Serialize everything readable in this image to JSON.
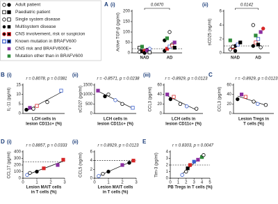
{
  "legend": [
    "Adult patient",
    "Paediatric patient",
    "Single system disease",
    "Multisystem disease",
    "CNS involvement, risk or suspicion",
    "Known mutation in BRAFV600",
    "CNS risk and BRAFV600E+",
    "Mutation other than in BRAFV600"
  ],
  "chart_data": [
    {
      "type": "strip",
      "panel": "A",
      "label": "(i)",
      "y_label": "Active TGF-β (pg/ml)",
      "p_value": "0.0470",
      "categories": [
        "NAD",
        "AD"
      ],
      "ylim": [
        0,
        200
      ],
      "yticks": [
        0,
        50,
        100,
        150,
        200
      ],
      "reference_line": 20,
      "series": [
        {
          "values": [
            5,
            8,
            10,
            15,
            20,
            25,
            30,
            0,
            12,
            3
          ],
          "colors": [
            "#000",
            "#000",
            "#d62728",
            "#000",
            "#3a5fcd",
            "#000",
            "#2e8b3a",
            "#000",
            "#8b2fa0",
            "#000"
          ],
          "shapes": [
            "circle",
            "square",
            "square",
            "circle",
            "circle",
            "square",
            "square",
            "circle",
            "square",
            "square"
          ],
          "filled": [
            false,
            true,
            true,
            true,
            false,
            false,
            true,
            true,
            true,
            false
          ]
        },
        {
          "values": [
            10,
            20,
            30,
            40,
            50,
            60,
            70,
            100,
            35,
            25
          ],
          "colors": [
            "#000",
            "#d62728",
            "#3a5fcd",
            "#000",
            "#8b2fa0",
            "#000",
            "#2e8b3a",
            "#000",
            "#d62728",
            "#000"
          ],
          "shapes": [
            "circle",
            "square",
            "square",
            "circle",
            "square",
            "circle",
            "square",
            "circle",
            "circle",
            "square"
          ],
          "filled": [
            true,
            true,
            false,
            false,
            true,
            true,
            true,
            false,
            false,
            true
          ]
        }
      ]
    },
    {
      "type": "strip",
      "label": "(ii)",
      "y_label": "sCD25 (ng/ml)",
      "p_value": "0.0142",
      "categories": [
        "NAD",
        "AD"
      ],
      "ylim": [
        0,
        6
      ],
      "yticks": [
        0,
        2,
        4,
        6
      ],
      "reference_line": 1,
      "series": [
        {
          "values": [
            0.5,
            0.8,
            1,
            1.2,
            1.5,
            1.8,
            0.9,
            0.3
          ],
          "colors": [
            "#000",
            "#d62728",
            "#000",
            "#3a5fcd",
            "#000",
            "#2e8b3a",
            "#000",
            "#000"
          ],
          "shapes": [
            "circle",
            "square",
            "circle",
            "square",
            "square",
            "square",
            "circle",
            "circle"
          ],
          "filled": [
            false,
            true,
            true,
            false,
            true,
            true,
            false,
            true
          ]
        },
        {
          "values": [
            1,
            1.5,
            2,
            3,
            3.5,
            4,
            2.5,
            1.2,
            0.8
          ],
          "colors": [
            "#000",
            "#d62728",
            "#3a5fcd",
            "#8b2fa0",
            "#d62728",
            "#000",
            "#2e8b3a",
            "#000",
            "#000"
          ],
          "shapes": [
            "circle",
            "square",
            "square",
            "square",
            "circle",
            "circle",
            "square",
            "square",
            "circle"
          ],
          "filled": [
            true,
            false,
            false,
            true,
            true,
            false,
            true,
            true,
            false
          ]
        }
      ]
    },
    {
      "type": "scatter",
      "panel": "B",
      "label": "(i)",
      "stat": "r = 0.8078, p = 0.0381",
      "y_label": "IL-11 (pg/ml)",
      "x_label": [
        "LCH cells in",
        "lesion CD11c+ (%)"
      ],
      "xlim": [
        0,
        60
      ],
      "ylim": [
        0,
        15
      ],
      "yticks": [
        0,
        5,
        10,
        15
      ],
      "fit_line": true,
      "series": [
        {
          "x": [
            5,
            10,
            15,
            20,
            35,
            55
          ],
          "values": [
            2,
            3,
            2.5,
            4,
            6,
            12
          ],
          "colors": [
            "#000",
            "#8b2fa0",
            "#000",
            "#d62728",
            "#000",
            "#3a5fcd"
          ],
          "shapes": [
            "circle",
            "square",
            "circle",
            "square",
            "circle",
            "square"
          ],
          "filled": [
            true,
            true,
            false,
            false,
            false,
            false
          ]
        }
      ]
    },
    {
      "type": "scatter",
      "label": "(ii)",
      "stat": "r = -0.8571, p = 0.0238",
      "y_label": "sCD27 (pg/ml)",
      "x_label": [
        "LCH cells in",
        "lesion CD11c+ (%)"
      ],
      "xlim": [
        0,
        60
      ],
      "ylim": [
        0,
        1500
      ],
      "yticks": [
        0,
        500,
        1000,
        1500
      ],
      "fit_line": true,
      "series": [
        {
          "x": [
            5,
            15,
            20,
            30,
            40,
            55
          ],
          "values": [
            1200,
            900,
            1000,
            700,
            500,
            300
          ],
          "colors": [
            "#8b2fa0",
            "#000",
            "#000",
            "#3a5fcd",
            "#000",
            "#3a5fcd"
          ],
          "shapes": [
            "square",
            "circle",
            "circle",
            "circle",
            "circle",
            "square"
          ],
          "filled": [
            true,
            true,
            false,
            false,
            false,
            false
          ]
        }
      ]
    },
    {
      "type": "scatter",
      "label": "(iii)",
      "stat": "r = -0.8929, p = 0.0123",
      "y_label": "CCL3 (pg/ml)",
      "x_label": [
        "LCH cells in",
        "lesion CD11c+ (%)"
      ],
      "xlim": [
        0,
        60
      ],
      "ylim": [
        0,
        60
      ],
      "yticks": [
        0,
        20,
        40,
        60
      ],
      "fit_line": true,
      "series": [
        {
          "x": [
            5,
            10,
            15,
            25,
            35,
            50
          ],
          "values": [
            40,
            30,
            35,
            20,
            15,
            10
          ],
          "colors": [
            "#8b2fa0",
            "#000",
            "#d62728",
            "#000",
            "#3a5fcd",
            "#000"
          ],
          "shapes": [
            "square",
            "circle",
            "square",
            "circle",
            "circle",
            "circle"
          ],
          "filled": [
            true,
            true,
            false,
            false,
            false,
            false
          ]
        }
      ]
    },
    {
      "type": "scatter",
      "panel": "C",
      "stat": "r = -0.8929, p = 0.0123",
      "y_label": "CCL3 (pg/ml)",
      "x_label": [
        "Lesion Tregs in",
        "T cells (%)"
      ],
      "xlim": [
        0,
        50
      ],
      "ylim": [
        0,
        60
      ],
      "yticks": [
        0,
        20,
        40,
        60
      ],
      "fit_line": true,
      "series": [
        {
          "x": [
            5,
            10,
            15,
            25,
            30,
            40
          ],
          "values": [
            30,
            40,
            35,
            25,
            20,
            18
          ],
          "colors": [
            "#000",
            "#8b2fa0",
            "#d62728",
            "#000",
            "#3a5fcd",
            "#000"
          ],
          "shapes": [
            "circle",
            "square",
            "square",
            "circle",
            "circle",
            "circle"
          ],
          "filled": [
            true,
            true,
            false,
            false,
            false,
            false
          ]
        }
      ]
    },
    {
      "type": "scatter",
      "panel": "D",
      "label": "(i)",
      "stat": "r = 0.8857, p = 0.0333",
      "y_label": "CCL17 (pg/ml)",
      "x_label": [
        "Lesion MAIT cells",
        "in T cells (%)"
      ],
      "xlim": [
        0,
        3
      ],
      "xticks": [
        0,
        1,
        2,
        3
      ],
      "ylim": [
        0,
        400
      ],
      "yticks": [
        0,
        100,
        200,
        300,
        400
      ],
      "reference_line": 250,
      "fit_line": true,
      "series": [
        {
          "x": [
            0.3,
            0.5,
            1,
            1.5,
            2.5,
            2.9
          ],
          "values": [
            50,
            80,
            100,
            150,
            200,
            280
          ],
          "colors": [
            "#3a5fcd",
            "#000",
            "#000",
            "#d62728",
            "#8b2fa0",
            "#d62728"
          ],
          "shapes": [
            "circle",
            "circle",
            "circle",
            "square",
            "square",
            "square"
          ],
          "filled": [
            false,
            false,
            true,
            true,
            true,
            true
          ]
        }
      ]
    },
    {
      "type": "scatter",
      "label": "(ii)",
      "stat": "r = 0.8929, p = 0.0123",
      "y_label": "CCL5 (ng/ml)",
      "x_label": [
        "Lesion MAIT cells",
        "in T cells (%)"
      ],
      "xlim": [
        0,
        3
      ],
      "xticks": [
        0,
        1,
        2,
        3
      ],
      "ylim": [
        0,
        6
      ],
      "yticks": [
        0,
        2,
        4,
        6
      ],
      "reference_line": 4,
      "fit_line": true,
      "series": [
        {
          "x": [
            0.3,
            0.6,
            1,
            2,
            2.5,
            2.8
          ],
          "values": [
            0.5,
            1,
            1.5,
            3,
            3.5,
            4
          ],
          "colors": [
            "#3a5fcd",
            "#000",
            "#000",
            "#8b2fa0",
            "#000",
            "#d62728"
          ],
          "shapes": [
            "circle",
            "circle",
            "circle",
            "square",
            "circle",
            "square"
          ],
          "filled": [
            false,
            false,
            true,
            true,
            true,
            true
          ]
        }
      ]
    },
    {
      "type": "scatter",
      "panel": "E",
      "stat": "r = 0.8303, p = 0.0047",
      "y_label": "Tim-3 (pg/ml)",
      "x_label": [
        "PB Tregs in T cells (%)"
      ],
      "xlim": [
        0,
        5
      ],
      "xticks": [
        0,
        1,
        2,
        3,
        4,
        5
      ],
      "ylim": [
        0,
        4
      ],
      "yticks": [
        0,
        1,
        2,
        3,
        4
      ],
      "reference_line": 2,
      "fit_line": true,
      "series": [
        {
          "x": [
            1.5,
            2,
            2.2,
            2.5,
            3,
            3.5,
            4,
            4.2
          ],
          "values": [
            0.5,
            1,
            1.5,
            2,
            2.5,
            2.8,
            3.2,
            3.5
          ],
          "colors": [
            "#3a5fcd",
            "#000",
            "#000",
            "#d62728",
            "#3a5fcd",
            "#8b2fa0",
            "#2e8b3a",
            "#000"
          ],
          "shapes": [
            "circle",
            "circle",
            "square",
            "square",
            "square",
            "square",
            "square",
            "circle"
          ],
          "filled": [
            false,
            false,
            true,
            true,
            true,
            true,
            true,
            false
          ]
        }
      ]
    }
  ]
}
